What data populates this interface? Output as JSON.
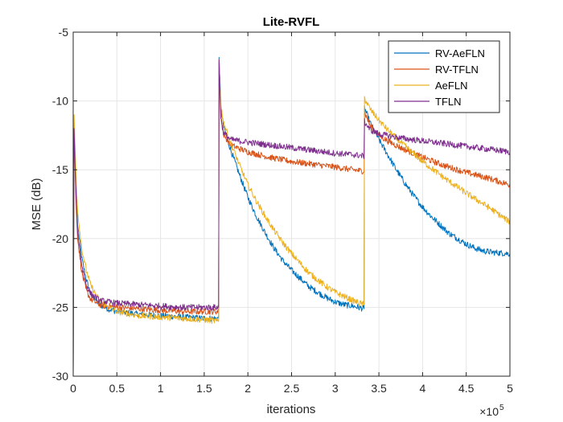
{
  "chart_data": {
    "type": "line",
    "title": "Lite-RVFL",
    "xlabel": "iterations",
    "ylabel": "MSE (dB)",
    "x_exponent_base": "×10",
    "x_exponent_power": "5",
    "xlim": [
      0,
      5
    ],
    "ylim": [
      -30,
      -5
    ],
    "xticks": [
      0,
      0.5,
      1,
      1.5,
      2,
      2.5,
      3,
      3.5,
      4,
      4.5,
      5
    ],
    "xtick_labels": [
      "0",
      "0.5",
      "1",
      "1.5",
      "2",
      "2.5",
      "3",
      "3.5",
      "4",
      "4.5",
      "5"
    ],
    "yticks": [
      -30,
      -25,
      -20,
      -15,
      -10,
      -5
    ],
    "ytick_labels": [
      "-30",
      "-25",
      "-20",
      "-15",
      "-10",
      "-5"
    ],
    "grid": true,
    "legend_position": "top-right",
    "series": [
      {
        "name": "RV-AeFLN",
        "color": "#0072BD",
        "points": [
          [
            0,
            -30
          ],
          [
            0.01,
            -12
          ],
          [
            0.03,
            -16
          ],
          [
            0.05,
            -19
          ],
          [
            0.1,
            -21.5
          ],
          [
            0.15,
            -23
          ],
          [
            0.2,
            -24
          ],
          [
            0.3,
            -24.8
          ],
          [
            0.4,
            -25.1
          ],
          [
            0.5,
            -25.3
          ],
          [
            0.75,
            -25.5
          ],
          [
            1,
            -25.6
          ],
          [
            1.25,
            -25.7
          ],
          [
            1.5,
            -25.8
          ],
          [
            1.665,
            -25.8
          ],
          [
            1.67,
            -6.8
          ],
          [
            1.69,
            -10.5
          ],
          [
            1.72,
            -11.8
          ],
          [
            1.8,
            -13.5
          ],
          [
            1.9,
            -15.3
          ],
          [
            2,
            -17
          ],
          [
            2.1,
            -18.4
          ],
          [
            2.2,
            -19.6
          ],
          [
            2.3,
            -20.7
          ],
          [
            2.4,
            -21.6
          ],
          [
            2.5,
            -22.3
          ],
          [
            2.6,
            -22.9
          ],
          [
            2.7,
            -23.5
          ],
          [
            2.8,
            -23.9
          ],
          [
            2.9,
            -24.3
          ],
          [
            3,
            -24.6
          ],
          [
            3.1,
            -24.8
          ],
          [
            3.2,
            -24.9
          ],
          [
            3.33,
            -25.1
          ],
          [
            3.335,
            -10.5
          ],
          [
            3.4,
            -11.6
          ],
          [
            3.5,
            -12.8
          ],
          [
            3.6,
            -13.9
          ],
          [
            3.7,
            -15
          ],
          [
            3.8,
            -16
          ],
          [
            3.9,
            -16.9
          ],
          [
            4,
            -17.7
          ],
          [
            4.1,
            -18.4
          ],
          [
            4.2,
            -19
          ],
          [
            4.3,
            -19.6
          ],
          [
            4.4,
            -20
          ],
          [
            4.5,
            -20.4
          ],
          [
            4.6,
            -20.7
          ],
          [
            4.7,
            -20.9
          ],
          [
            4.8,
            -21
          ],
          [
            5,
            -21.1
          ]
        ]
      },
      {
        "name": "RV-TFLN",
        "color": "#D95319",
        "points": [
          [
            0,
            -30
          ],
          [
            0.01,
            -12
          ],
          [
            0.03,
            -17
          ],
          [
            0.05,
            -20
          ],
          [
            0.1,
            -22.5
          ],
          [
            0.15,
            -23.8
          ],
          [
            0.2,
            -24.4
          ],
          [
            0.3,
            -24.8
          ],
          [
            0.5,
            -25
          ],
          [
            0.75,
            -25.1
          ],
          [
            1,
            -25.2
          ],
          [
            1.25,
            -25.3
          ],
          [
            1.5,
            -25.3
          ],
          [
            1.665,
            -25.3
          ],
          [
            1.67,
            -7
          ],
          [
            1.69,
            -11
          ],
          [
            1.72,
            -12.4
          ],
          [
            1.8,
            -13.2
          ],
          [
            2,
            -13.7
          ],
          [
            2.25,
            -14.1
          ],
          [
            2.5,
            -14.4
          ],
          [
            2.75,
            -14.6
          ],
          [
            3,
            -14.8
          ],
          [
            3.2,
            -15
          ],
          [
            3.33,
            -15.1
          ],
          [
            3.335,
            -10.8
          ],
          [
            3.4,
            -11.8
          ],
          [
            3.5,
            -12.5
          ],
          [
            3.6,
            -12.9
          ],
          [
            3.75,
            -13.4
          ],
          [
            4,
            -14.1
          ],
          [
            4.25,
            -14.7
          ],
          [
            4.5,
            -15.2
          ],
          [
            4.75,
            -15.6
          ],
          [
            5,
            -16.1
          ]
        ]
      },
      {
        "name": "AeFLN",
        "color": "#EDB120",
        "points": [
          [
            0,
            -30
          ],
          [
            0.01,
            -11
          ],
          [
            0.03,
            -15
          ],
          [
            0.05,
            -18
          ],
          [
            0.1,
            -20.8
          ],
          [
            0.15,
            -22.3
          ],
          [
            0.2,
            -23.4
          ],
          [
            0.3,
            -24.5
          ],
          [
            0.4,
            -25
          ],
          [
            0.5,
            -25.3
          ],
          [
            0.75,
            -25.6
          ],
          [
            1,
            -25.7
          ],
          [
            1.25,
            -25.8
          ],
          [
            1.5,
            -25.9
          ],
          [
            1.665,
            -26
          ],
          [
            1.67,
            -7
          ],
          [
            1.69,
            -10.3
          ],
          [
            1.72,
            -11.5
          ],
          [
            1.8,
            -13
          ],
          [
            1.9,
            -14.6
          ],
          [
            2,
            -16.1
          ],
          [
            2.1,
            -17.3
          ],
          [
            2.2,
            -18.4
          ],
          [
            2.3,
            -19.4
          ],
          [
            2.4,
            -20.3
          ],
          [
            2.5,
            -21.1
          ],
          [
            2.6,
            -21.8
          ],
          [
            2.7,
            -22.5
          ],
          [
            2.8,
            -23
          ],
          [
            2.9,
            -23.5
          ],
          [
            3,
            -23.9
          ],
          [
            3.1,
            -24.2
          ],
          [
            3.2,
            -24.5
          ],
          [
            3.33,
            -24.8
          ],
          [
            3.335,
            -9.8
          ],
          [
            3.4,
            -10.6
          ],
          [
            3.5,
            -11.4
          ],
          [
            3.6,
            -12.1
          ],
          [
            3.75,
            -13
          ],
          [
            4,
            -14.4
          ],
          [
            4.25,
            -15.6
          ],
          [
            4.5,
            -16.7
          ],
          [
            4.75,
            -17.7
          ],
          [
            5,
            -18.8
          ]
        ]
      },
      {
        "name": "TFLN",
        "color": "#7E2F8E",
        "points": [
          [
            0,
            -30
          ],
          [
            0.01,
            -12
          ],
          [
            0.03,
            -16.5
          ],
          [
            0.05,
            -19.5
          ],
          [
            0.1,
            -22
          ],
          [
            0.15,
            -23.4
          ],
          [
            0.2,
            -24
          ],
          [
            0.3,
            -24.5
          ],
          [
            0.5,
            -24.7
          ],
          [
            0.75,
            -24.8
          ],
          [
            1,
            -24.9
          ],
          [
            1.25,
            -25
          ],
          [
            1.5,
            -25
          ],
          [
            1.665,
            -25
          ],
          [
            1.67,
            -7
          ],
          [
            1.69,
            -11.2
          ],
          [
            1.72,
            -12.3
          ],
          [
            1.8,
            -12.8
          ],
          [
            2,
            -13
          ],
          [
            2.25,
            -13.2
          ],
          [
            2.5,
            -13.4
          ],
          [
            2.75,
            -13.6
          ],
          [
            3,
            -13.8
          ],
          [
            3.2,
            -13.9
          ],
          [
            3.33,
            -14
          ],
          [
            3.335,
            -11.5
          ],
          [
            3.4,
            -12.1
          ],
          [
            3.5,
            -12.4
          ],
          [
            3.75,
            -12.7
          ],
          [
            4,
            -12.9
          ],
          [
            4.25,
            -13.1
          ],
          [
            4.5,
            -13.3
          ],
          [
            4.75,
            -13.5
          ],
          [
            5,
            -13.7
          ]
        ]
      }
    ]
  }
}
